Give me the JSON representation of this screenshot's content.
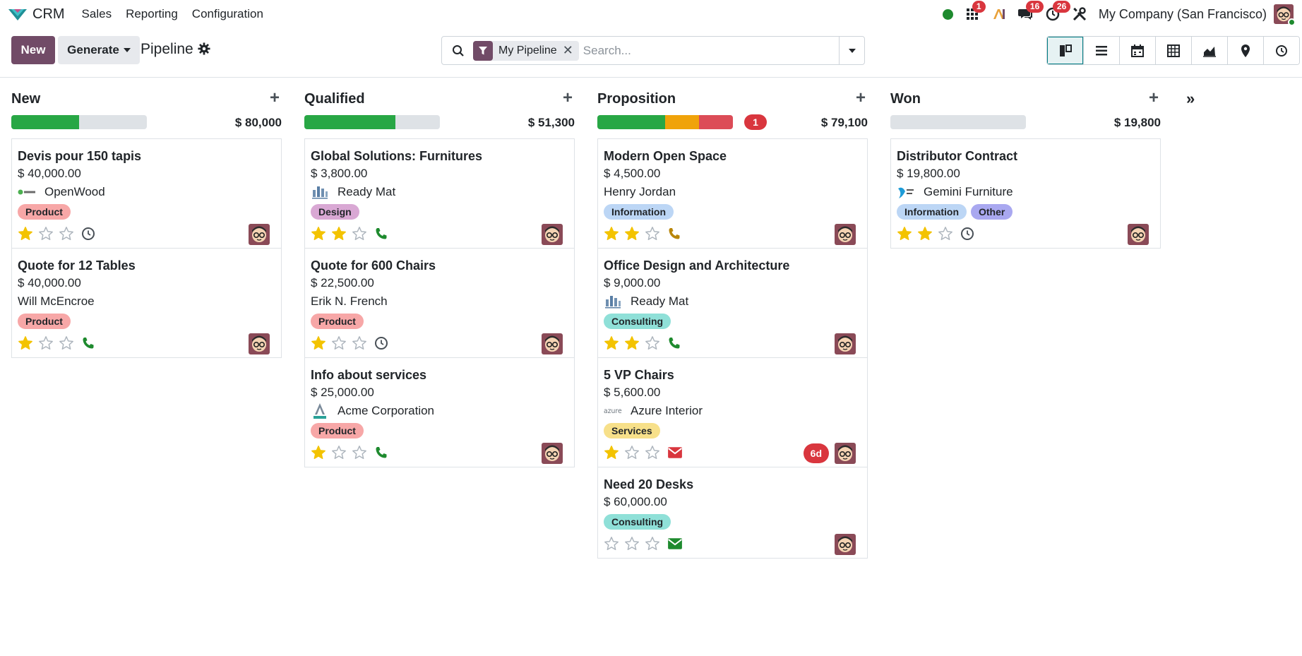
{
  "app": {
    "name": "CRM",
    "menu": [
      "Sales",
      "Reporting",
      "Configuration"
    ]
  },
  "systray": {
    "status_color": "#1e8a2e",
    "calls_badge": "1",
    "messages_badge": "16",
    "activities_badge": "26",
    "company": "My Company (San Francisco)"
  },
  "control": {
    "new_label": "New",
    "generate_label": "Generate",
    "title": "Pipeline",
    "facet_label": "My Pipeline",
    "search_placeholder": "Search...",
    "views": [
      "kanban",
      "list",
      "calendar",
      "pivot",
      "graph",
      "map",
      "activity"
    ]
  },
  "colors": {
    "brand": "#714b67",
    "green": "#28a745",
    "orange": "#f0a30a",
    "red": "#dc4c57",
    "tag_product": "#f7a7a7",
    "tag_design": "#d9a8d4",
    "tag_information": "#bcd6f5",
    "tag_consulting": "#8fe0d8",
    "tag_services": "#f7e08a",
    "tag_other": "#a9a8f0"
  },
  "columns": [
    {
      "title": "New",
      "total": "$ 80,000",
      "progress": {
        "green": 0.5,
        "orange": 0,
        "red": 0
      },
      "cards": [
        {
          "title": "Devis pour 150 tapis",
          "amount": "$ 40,000.00",
          "partner": "OpenWood",
          "logo": "openwood-logo-icon",
          "tags": [
            "Product"
          ],
          "stars": 1,
          "activity": "clock"
        },
        {
          "title": "Quote for 12 Tables",
          "amount": "$ 40,000.00",
          "partner": "Will McEncroe",
          "logo": "",
          "tags": [
            "Product"
          ],
          "stars": 1,
          "activity": "phone"
        }
      ]
    },
    {
      "title": "Qualified",
      "total": "$ 51,300",
      "progress": {
        "green": 0.67,
        "orange": 0,
        "red": 0
      },
      "cards": [
        {
          "title": "Global Solutions: Furnitures",
          "amount": "$ 3,800.00",
          "partner": "Ready Mat",
          "logo": "readymat-logo-icon",
          "tags": [
            "Design"
          ],
          "stars": 2,
          "activity": "phone"
        },
        {
          "title": "Quote for 600 Chairs",
          "amount": "$ 22,500.00",
          "partner": "Erik N. French",
          "logo": "",
          "tags": [
            "Product"
          ],
          "stars": 1,
          "activity": "clock"
        },
        {
          "title": "Info about services",
          "amount": "$ 25,000.00",
          "partner": "Acme Corporation",
          "logo": "acme-logo-icon",
          "tags": [
            "Product"
          ],
          "stars": 1,
          "activity": "phone"
        }
      ]
    },
    {
      "title": "Proposition",
      "total": "$ 79,100",
      "count": "1",
      "progress": {
        "green": 0.5,
        "orange": 0.25,
        "red": 0.25
      },
      "cards": [
        {
          "title": "Modern Open Space",
          "amount": "$ 4,500.00",
          "partner": "Henry Jordan",
          "logo": "",
          "tags": [
            "Information"
          ],
          "stars": 2,
          "activity": "phone-warning"
        },
        {
          "title": "Office Design and Architecture",
          "amount": "$ 9,000.00",
          "partner": "Ready Mat",
          "logo": "readymat-logo-icon",
          "tags": [
            "Consulting"
          ],
          "stars": 2,
          "activity": "phone"
        },
        {
          "title": "5 VP Chairs",
          "amount": "$ 5,600.00",
          "partner": "Azure Interior",
          "logo": "azure-logo-icon",
          "tags": [
            "Services"
          ],
          "stars": 1,
          "activity": "mail-overdue",
          "overdue": "6d"
        },
        {
          "title": "Need 20 Desks",
          "amount": "$ 60,000.00",
          "partner": "",
          "logo": "",
          "tags": [
            "Consulting"
          ],
          "stars": 0,
          "activity": "mail"
        }
      ]
    },
    {
      "title": "Won",
      "total": "$ 19,800",
      "progress": {
        "green": 0,
        "orange": 0,
        "red": 0
      },
      "cards": [
        {
          "title": "Distributor Contract",
          "amount": "$ 19,800.00",
          "partner": "Gemini Furniture",
          "logo": "gemini-logo-icon",
          "tags": [
            "Information",
            "Other"
          ],
          "stars": 2,
          "activity": "clock"
        }
      ]
    }
  ]
}
